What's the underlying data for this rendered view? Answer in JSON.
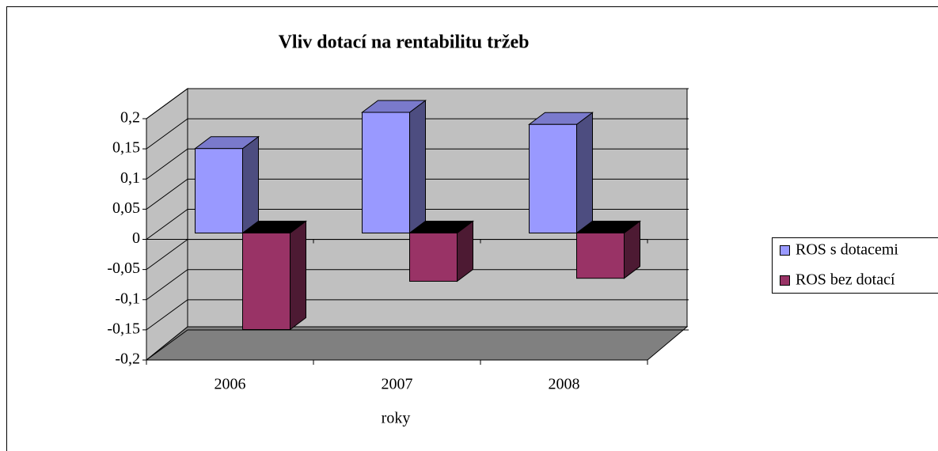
{
  "chart_data": {
    "type": "bar3d",
    "title": "Vliv dotací na rentabilitu tržeb",
    "x_label": "roky",
    "categories": [
      "2006",
      "2007",
      "2008"
    ],
    "series": [
      {
        "name": "ROS s dotacemi",
        "color": "#9999ff",
        "values": [
          0.14,
          0.2,
          0.18
        ]
      },
      {
        "name": "ROS bez dotací",
        "color": "#993366",
        "values": [
          -0.16,
          -0.08,
          -0.075
        ]
      }
    ],
    "ylim": [
      -0.2,
      0.2
    ],
    "yticks": [
      {
        "value": 0.2,
        "label": "0,2"
      },
      {
        "value": 0.15,
        "label": "0,15"
      },
      {
        "value": 0.1,
        "label": "0,1"
      },
      {
        "value": 0.05,
        "label": "0,05"
      },
      {
        "value": 0,
        "label": "0"
      },
      {
        "value": -0.05,
        "label": "-0,05"
      },
      {
        "value": -0.1,
        "label": "-0,1"
      },
      {
        "value": -0.15,
        "label": "-0,15"
      },
      {
        "value": -0.2,
        "label": "-0,2"
      }
    ],
    "grid": true,
    "legend": "right"
  }
}
